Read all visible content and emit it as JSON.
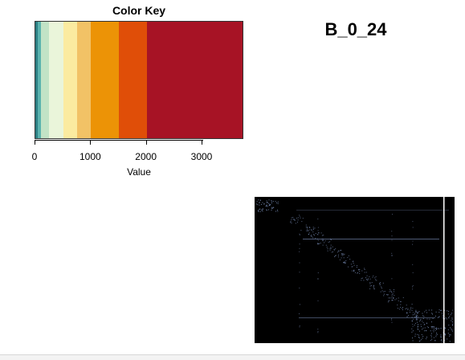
{
  "chart_data": [
    {
      "type": "heatmap",
      "role": "color-key",
      "title": "Color Key",
      "xlabel": "Value",
      "xlim": [
        0,
        3750
      ],
      "ticks": [
        0,
        1000,
        2000,
        3000
      ],
      "tick_labels": [
        "0",
        "1000",
        "2000",
        "3000"
      ],
      "bins": [
        {
          "from": 0,
          "to": 40,
          "color": "#2c7f84"
        },
        {
          "from": 40,
          "to": 100,
          "color": "#5bb3ae"
        },
        {
          "from": 100,
          "to": 250,
          "color": "#c2e3c6"
        },
        {
          "from": 250,
          "to": 500,
          "color": "#eaf5da"
        },
        {
          "from": 500,
          "to": 750,
          "color": "#fbeba0"
        },
        {
          "from": 750,
          "to": 1000,
          "color": "#f2c266"
        },
        {
          "from": 1000,
          "to": 1500,
          "color": "#ec9306"
        },
        {
          "from": 1500,
          "to": 2000,
          "color": "#e04e08"
        },
        {
          "from": 2000,
          "to": 3750,
          "color": "#a71325"
        }
      ]
    },
    {
      "type": "heatmap",
      "role": "matrix",
      "title": "B_0_24",
      "background": "#000000",
      "mark_color": "#8fa6d8",
      "separator_color": "#ffffff"
    }
  ]
}
